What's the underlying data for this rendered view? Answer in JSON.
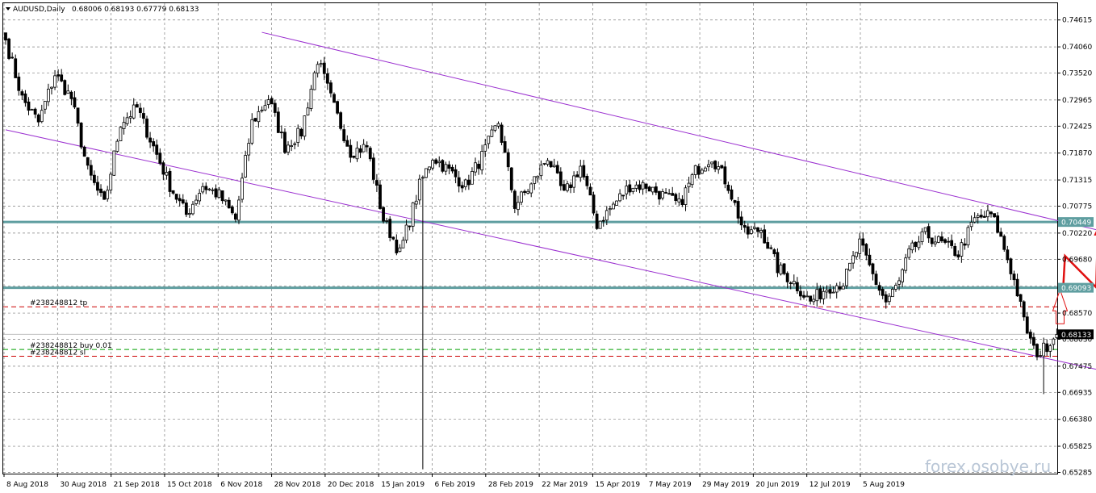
{
  "header": {
    "symbol_label": "AUDUSD,Daily",
    "ohlc": "0.68006 0.68193 0.67779 0.68133"
  },
  "watermark": "forex.osobye.ru",
  "colors": {
    "bull": "#ffffff",
    "bear": "#000000",
    "grid": "#7f7f7f",
    "channel": "#9b30d0",
    "level": "#5f9ea0",
    "current": "#c0c0c0",
    "order_tp": "#cc0000",
    "order_buy": "#00a000",
    "arrow": "#e01010",
    "badge_level_bg": "#5f9ea0",
    "badge_current_bg": "#000000"
  },
  "chart_data": {
    "type": "candlestick",
    "title": "AUDUSD,Daily",
    "ylim": [
      0.6526,
      0.7496
    ],
    "grid": true,
    "y_ticks": [
      "0.74615",
      "0.74060",
      "0.73520",
      "0.72965",
      "0.72425",
      "0.71870",
      "0.71315",
      "0.70775",
      "0.70220",
      "0.69680",
      "0.69125",
      "0.68570",
      "0.68030",
      "0.67475",
      "0.66935",
      "0.66380",
      "0.65825",
      "0.65285"
    ],
    "x_tick_labels": [
      "8 Aug 2018",
      "30 Aug 2018",
      "21 Sep 2018",
      "15 Oct 2018",
      "6 Nov 2018",
      "28 Nov 2018",
      "20 Dec 2018",
      "15 Jan 2019",
      "6 Feb 2019",
      "28 Feb 2019",
      "22 Mar 2019",
      "15 Apr 2019",
      "7 May 2019",
      "29 May 2019",
      "20 Jun 2019",
      "12 Jul 2019",
      "5 Aug 2019"
    ],
    "close_anchors": [
      [
        0,
        0.742
      ],
      [
        5,
        0.73
      ],
      [
        10,
        0.725
      ],
      [
        15,
        0.735
      ],
      [
        20,
        0.73
      ],
      [
        25,
        0.715
      ],
      [
        30,
        0.708
      ],
      [
        35,
        0.725
      ],
      [
        40,
        0.728
      ],
      [
        45,
        0.72
      ],
      [
        50,
        0.712
      ],
      [
        55,
        0.706
      ],
      [
        60,
        0.712
      ],
      [
        65,
        0.71
      ],
      [
        70,
        0.705
      ],
      [
        75,
        0.725
      ],
      [
        80,
        0.73
      ],
      [
        85,
        0.72
      ],
      [
        90,
        0.723
      ],
      [
        95,
        0.738
      ],
      [
        100,
        0.728
      ],
      [
        105,
        0.719
      ],
      [
        110,
        0.72
      ],
      [
        115,
        0.705
      ],
      [
        118,
        0.701
      ],
      [
        120,
        0.698
      ],
      [
        123,
        0.705
      ],
      [
        126,
        0.712
      ],
      [
        130,
        0.718
      ],
      [
        135,
        0.715
      ],
      [
        140,
        0.712
      ],
      [
        145,
        0.718
      ],
      [
        150,
        0.725
      ],
      [
        155,
        0.708
      ],
      [
        160,
        0.712
      ],
      [
        165,
        0.718
      ],
      [
        170,
        0.71
      ],
      [
        175,
        0.716
      ],
      [
        180,
        0.704
      ],
      [
        185,
        0.708
      ],
      [
        190,
        0.712
      ],
      [
        195,
        0.712
      ],
      [
        200,
        0.71
      ],
      [
        205,
        0.708
      ],
      [
        210,
        0.715
      ],
      [
        215,
        0.718
      ],
      [
        220,
        0.712
      ],
      [
        225,
        0.702
      ],
      [
        230,
        0.703
      ],
      [
        235,
        0.695
      ],
      [
        240,
        0.692
      ],
      [
        245,
        0.688
      ],
      [
        250,
        0.691
      ],
      [
        255,
        0.692
      ],
      [
        260,
        0.7
      ],
      [
        265,
        0.692
      ],
      [
        268,
        0.688
      ],
      [
        272,
        0.692
      ],
      [
        275,
        0.698
      ],
      [
        280,
        0.702
      ],
      [
        285,
        0.7
      ],
      [
        290,
        0.698
      ],
      [
        295,
        0.705
      ],
      [
        300,
        0.706
      ],
      [
        302,
        0.703
      ],
      [
        305,
        0.697
      ],
      [
        308,
        0.69
      ],
      [
        310,
        0.684
      ],
      [
        313,
        0.678
      ],
      [
        315,
        0.6775
      ],
      [
        318,
        0.68
      ],
      [
        320,
        0.6813
      ]
    ],
    "spikes": [
      {
        "index": 127,
        "low": 0.6535
      },
      {
        "index": 316,
        "low": 0.669
      }
    ],
    "channel": {
      "upper": [
        [
          78,
          0.7436
        ],
        [
          400,
          0.692
        ]
      ],
      "lower": [
        [
          0,
          0.7235
        ],
        [
          400,
          0.664
        ]
      ]
    },
    "levels": [
      {
        "price": 0.70449,
        "label": "0.70449"
      },
      {
        "price": 0.69093,
        "label": "0.69093"
      }
    ],
    "current_price": {
      "price": 0.68133,
      "label": "0.68133"
    },
    "orders": [
      {
        "price": 0.687,
        "text": "#238248812 tp",
        "type": "tp"
      },
      {
        "price": 0.6782,
        "text": "#238248812 buy 0.01",
        "type": "buy"
      },
      {
        "price": 0.6768,
        "text": "#238248812 sl",
        "type": "sl"
      }
    ],
    "arrows": {
      "zigzag": [
        [
          322,
          0.6915
        ],
        [
          322.5,
          0.6975
        ],
        [
          332,
          0.691
        ],
        [
          332.5,
          0.7032
        ]
      ],
      "hollow_arrow": {
        "index": 321,
        "base": 0.6835,
        "tip": 0.6905
      }
    }
  }
}
